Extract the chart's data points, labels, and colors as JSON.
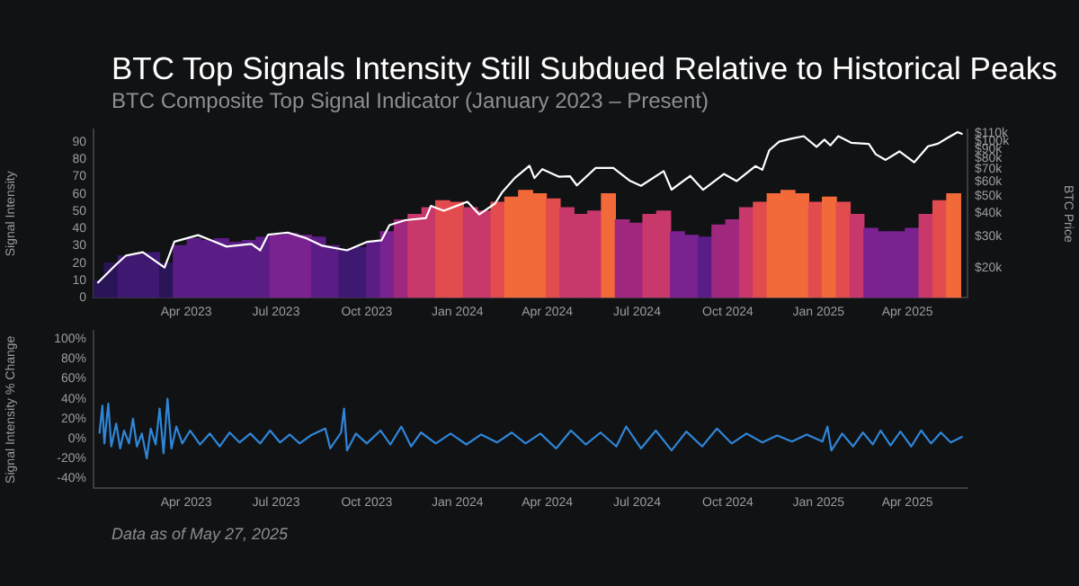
{
  "chart_data": [
    {
      "type": "bar",
      "title": "BTC Top Signals Intensity Still Subdued Relative to Historical Peaks",
      "subtitle": "BTC Composite Top Signal Indicator (January 2023 – Present)",
      "ylabel": "Signal Intensity",
      "y2label": "BTC Price",
      "xlim": [
        "2022-12-28",
        "2025-06-01"
      ],
      "xticks": [
        {
          "value": "2023-04-01",
          "label": "Apr 2023"
        },
        {
          "value": "2023-07-01",
          "label": "Jul 2023"
        },
        {
          "value": "2023-10-01",
          "label": "Oct 2023"
        },
        {
          "value": "2024-01-01",
          "label": "Jan 2024"
        },
        {
          "value": "2024-04-01",
          "label": "Apr 2024"
        },
        {
          "value": "2024-07-01",
          "label": "Jul 2024"
        },
        {
          "value": "2024-10-01",
          "label": "Oct 2024"
        },
        {
          "value": "2025-01-01",
          "label": "Jan 2025"
        },
        {
          "value": "2025-04-01",
          "label": "Apr 2025"
        }
      ],
      "ylim": [
        0,
        97
      ],
      "yticks": [
        0,
        10,
        20,
        30,
        40,
        50,
        60,
        70,
        80,
        90
      ],
      "y2lim": [
        13800,
        115000
      ],
      "y2ticks": [
        {
          "value": 20000,
          "label": "$20k"
        },
        {
          "value": 30000,
          "label": "$30k"
        },
        {
          "value": 40000,
          "label": "$40k"
        },
        {
          "value": 50000,
          "label": "$50k"
        },
        {
          "value": 60000,
          "label": "$60k"
        },
        {
          "value": 70000,
          "label": "$70k"
        },
        {
          "value": 80000,
          "label": "$80k"
        },
        {
          "value": 90000,
          "label": "$90k"
        },
        {
          "value": 100000,
          "label": "$100k"
        },
        {
          "value": 110000,
          "label": "$110k"
        }
      ],
      "log": "y2",
      "grid": false,
      "legend": false,
      "series": [
        {
          "type": "bar",
          "x": [
            "2023-01-01",
            "2023-01-15",
            "2023-01-29",
            "2023-02-12",
            "2023-02-26",
            "2023-03-12",
            "2023-03-26",
            "2023-04-09",
            "2023-04-23",
            "2023-05-07",
            "2023-05-21",
            "2023-06-04",
            "2023-06-18",
            "2023-07-02",
            "2023-07-16",
            "2023-07-30",
            "2023-08-13",
            "2023-08-27",
            "2023-09-10",
            "2023-09-24",
            "2023-10-08",
            "2023-10-22",
            "2023-11-05",
            "2023-11-19",
            "2023-12-03",
            "2023-12-17",
            "2023-12-31",
            "2024-01-14",
            "2024-01-28",
            "2024-02-11",
            "2024-02-25",
            "2024-03-10",
            "2024-03-24",
            "2024-04-07",
            "2024-04-21",
            "2024-05-05",
            "2024-05-19",
            "2024-06-02",
            "2024-06-16",
            "2024-06-30",
            "2024-07-14",
            "2024-07-28",
            "2024-08-11",
            "2024-08-25",
            "2024-09-08",
            "2024-09-22",
            "2024-10-06",
            "2024-10-20",
            "2024-11-03",
            "2024-11-17",
            "2024-12-01",
            "2024-12-15",
            "2024-12-29",
            "2025-01-12",
            "2025-01-26",
            "2025-02-09",
            "2025-02-23",
            "2025-03-09",
            "2025-03-23",
            "2025-04-06",
            "2025-04-20",
            "2025-05-04",
            "2025-05-18"
          ],
          "values": [
            10,
            20,
            24,
            25,
            26,
            20,
            30,
            34,
            33,
            34,
            32,
            33,
            35,
            36,
            37,
            36,
            35,
            30,
            28,
            29,
            32,
            38,
            45,
            48,
            52,
            56,
            55,
            52,
            50,
            55,
            58,
            62,
            60,
            57,
            52,
            48,
            50,
            60,
            45,
            43,
            48,
            50,
            38,
            36,
            35,
            42,
            45,
            52,
            55,
            60,
            62,
            60,
            55,
            58,
            55,
            48,
            40,
            38,
            38,
            40,
            48,
            56,
            60
          ],
          "colors": [
            "#2a1458",
            "#2a1458",
            "#3f1872",
            "#3f1872",
            "#3f1872",
            "#2a1458",
            "#5a1d86",
            "#5a1d86",
            "#5a1d86",
            "#5a1d86",
            "#5a1d86",
            "#5a1d86",
            "#5a1d86",
            "#7a2290",
            "#7a2290",
            "#7a2290",
            "#5a1d86",
            "#5a1d86",
            "#3f1872",
            "#3f1872",
            "#5a1d86",
            "#7a2290",
            "#a0287e",
            "#c8386a",
            "#c8386a",
            "#e34c4e",
            "#e34c4e",
            "#c8386a",
            "#c8386a",
            "#e34c4e",
            "#f26a3a",
            "#f26a3a",
            "#f26a3a",
            "#e34c4e",
            "#c8386a",
            "#c8386a",
            "#c8386a",
            "#f26a3a",
            "#a0287e",
            "#a0287e",
            "#c8386a",
            "#c8386a",
            "#7a2290",
            "#7a2290",
            "#5a1d86",
            "#a0287e",
            "#a0287e",
            "#c8386a",
            "#e34c4e",
            "#f26a3a",
            "#f26a3a",
            "#f26a3a",
            "#e34c4e",
            "#f26a3a",
            "#e34c4e",
            "#c8386a",
            "#7a2290",
            "#7a2290",
            "#7a2290",
            "#7a2290",
            "#c8386a",
            "#e34c4e",
            "#f26a3a"
          ]
        },
        {
          "type": "line",
          "axis": "y2",
          "color": "#ffffff",
          "x": [
            "2023-01-01",
            "2023-01-20",
            "2023-01-30",
            "2023-02-16",
            "2023-03-10",
            "2023-03-20",
            "2023-04-13",
            "2023-04-26",
            "2023-05-12",
            "2023-06-06",
            "2023-06-15",
            "2023-06-23",
            "2023-07-13",
            "2023-08-01",
            "2023-08-17",
            "2023-09-11",
            "2023-10-01",
            "2023-10-16",
            "2023-10-24",
            "2023-11-09",
            "2023-11-30",
            "2023-12-05",
            "2023-12-18",
            "2024-01-11",
            "2024-01-23",
            "2024-02-08",
            "2024-02-15",
            "2024-02-28",
            "2024-03-14",
            "2024-03-19",
            "2024-03-27",
            "2024-04-13",
            "2024-04-24",
            "2024-05-01",
            "2024-05-20",
            "2024-06-07",
            "2024-06-24",
            "2024-07-05",
            "2024-07-28",
            "2024-08-05",
            "2024-08-24",
            "2024-09-06",
            "2024-09-27",
            "2024-10-10",
            "2024-10-29",
            "2024-11-05",
            "2024-11-12",
            "2024-11-22",
            "2024-12-05",
            "2024-12-17",
            "2024-12-30",
            "2025-01-07",
            "2025-01-13",
            "2025-01-21",
            "2025-02-03",
            "2025-02-21",
            "2025-02-28",
            "2025-03-10",
            "2025-03-24",
            "2025-04-08",
            "2025-04-22",
            "2025-05-02",
            "2025-05-12",
            "2025-05-22",
            "2025-05-27"
          ],
          "values": [
            16600,
            21000,
            23500,
            24500,
            20200,
            28000,
            30400,
            28500,
            26300,
            27200,
            25100,
            30600,
            31400,
            29200,
            26600,
            25100,
            27900,
            28500,
            34500,
            36700,
            37700,
            44000,
            41400,
            46300,
            39500,
            45300,
            52000,
            62500,
            73000,
            62500,
            70000,
            63500,
            64000,
            57000,
            71000,
            71000,
            60300,
            56700,
            68200,
            54000,
            64200,
            53900,
            65800,
            60200,
            72700,
            69400,
            88700,
            98900,
            103000,
            106100,
            92700,
            101500,
            94500,
            106000,
            97600,
            96100,
            84400,
            78600,
            87500,
            76300,
            93400,
            96500,
            104000,
            111700,
            108900
          ]
        }
      ]
    },
    {
      "type": "line",
      "ylabel": "Signal Intensity % Change",
      "xlim": [
        "2022-12-28",
        "2025-06-01"
      ],
      "xticks": [
        {
          "value": "2023-04-01",
          "label": "Apr 2023"
        },
        {
          "value": "2023-07-01",
          "label": "Jul 2023"
        },
        {
          "value": "2023-10-01",
          "label": "Oct 2023"
        },
        {
          "value": "2024-01-01",
          "label": "Jan 2024"
        },
        {
          "value": "2024-04-01",
          "label": "Apr 2024"
        },
        {
          "value": "2024-07-01",
          "label": "Jul 2024"
        },
        {
          "value": "2024-10-01",
          "label": "Oct 2024"
        },
        {
          "value": "2025-01-01",
          "label": "Jan 2025"
        },
        {
          "value": "2025-04-01",
          "label": "Apr 2025"
        }
      ],
      "ylim": [
        -50,
        108
      ],
      "yticks": [
        {
          "value": -40,
          "label": "-40%"
        },
        {
          "value": -20,
          "label": "-20%"
        },
        {
          "value": 0,
          "label": "0%"
        },
        {
          "value": 20,
          "label": "20%"
        },
        {
          "value": 40,
          "label": "40%"
        },
        {
          "value": 60,
          "label": "60%"
        },
        {
          "value": 80,
          "label": "80%"
        },
        {
          "value": 100,
          "label": "100%"
        }
      ],
      "grid": false,
      "legend": false,
      "marker": "none",
      "annotations": [
        "Data as of May 27, 2025"
      ],
      "series": [
        {
          "color": "#2f86d8",
          "x": [
            "2023-01-03",
            "2023-01-06",
            "2023-01-08",
            "2023-01-12",
            "2023-01-15",
            "2023-01-20",
            "2023-01-24",
            "2023-01-28",
            "2023-02-02",
            "2023-02-06",
            "2023-02-10",
            "2023-02-15",
            "2023-02-20",
            "2023-02-24",
            "2023-03-01",
            "2023-03-05",
            "2023-03-09",
            "2023-03-13",
            "2023-03-17",
            "2023-03-22",
            "2023-03-28",
            "2023-04-05",
            "2023-04-15",
            "2023-04-25",
            "2023-05-05",
            "2023-05-15",
            "2023-05-25",
            "2023-06-05",
            "2023-06-15",
            "2023-06-25",
            "2023-07-05",
            "2023-07-15",
            "2023-07-25",
            "2023-08-05",
            "2023-08-20",
            "2023-08-25",
            "2023-09-05",
            "2023-09-08",
            "2023-09-11",
            "2023-09-20",
            "2023-10-01",
            "2023-10-15",
            "2023-10-25",
            "2023-11-05",
            "2023-11-15",
            "2023-11-25",
            "2023-12-10",
            "2023-12-25",
            "2024-01-10",
            "2024-01-25",
            "2024-02-10",
            "2024-02-25",
            "2024-03-10",
            "2024-03-25",
            "2024-04-10",
            "2024-04-25",
            "2024-05-10",
            "2024-05-25",
            "2024-06-10",
            "2024-06-20",
            "2024-07-05",
            "2024-07-20",
            "2024-08-05",
            "2024-08-20",
            "2024-09-05",
            "2024-09-20",
            "2024-10-05",
            "2024-10-20",
            "2024-11-05",
            "2024-11-20",
            "2024-12-05",
            "2024-12-20",
            "2025-01-05",
            "2025-01-10",
            "2025-01-14",
            "2025-01-25",
            "2025-02-05",
            "2025-02-15",
            "2025-02-25",
            "2025-03-05",
            "2025-03-15",
            "2025-03-25",
            "2025-04-05",
            "2025-04-15",
            "2025-04-25",
            "2025-05-05",
            "2025-05-15",
            "2025-05-27"
          ],
          "values": [
            5,
            33,
            -5,
            35,
            -8,
            15,
            -10,
            8,
            -5,
            20,
            -8,
            5,
            -20,
            10,
            -6,
            30,
            -15,
            40,
            -10,
            12,
            -5,
            8,
            -6,
            5,
            -8,
            6,
            -4,
            5,
            -5,
            8,
            -4,
            4,
            -5,
            3,
            10,
            -10,
            6,
            30,
            -12,
            5,
            -5,
            8,
            -6,
            12,
            -8,
            6,
            -5,
            5,
            -6,
            4,
            -4,
            6,
            -5,
            5,
            -10,
            8,
            -6,
            6,
            -8,
            12,
            -10,
            8,
            -12,
            7,
            -8,
            10,
            -5,
            5,
            -4,
            3,
            -3,
            4,
            -3,
            12,
            -12,
            5,
            -8,
            6,
            -6,
            8,
            -7,
            7,
            -8,
            8,
            -5,
            6,
            -4,
            2
          ]
        }
      ]
    }
  ]
}
